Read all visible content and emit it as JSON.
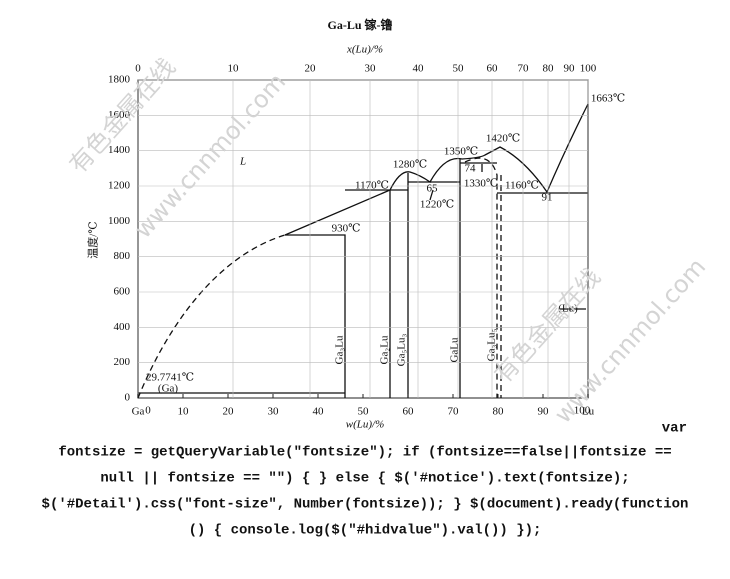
{
  "diagram": {
    "title": "Ga-Lu  镓-镥",
    "top_axis_label": "x(Lu)/%",
    "bottom_axis_label": "w(Lu)/%",
    "y_axis_label": "温度/℃",
    "top_ticks": [
      "0",
      "10",
      "20",
      "30",
      "40",
      "50",
      "60",
      "70",
      "80",
      "90",
      "100"
    ],
    "bottom_ticks": [
      "0",
      "10",
      "20",
      "30",
      "40",
      "50",
      "60",
      "70",
      "80",
      "90",
      "100"
    ],
    "y_ticks": [
      "0",
      "200",
      "400",
      "600",
      "800",
      "1000",
      "1200",
      "1400",
      "1600",
      "1800"
    ],
    "end_labels": [
      "Ga",
      "Lu"
    ],
    "annotations": [
      "L",
      "1663℃",
      "1420℃",
      "1350℃",
      "1280℃",
      "1170℃",
      "930℃",
      "65",
      "1220℃",
      "74",
      "1330℃",
      "1160℃",
      "91",
      "(Lu)",
      "29.7741℃",
      "(Ga)"
    ],
    "phases": [
      "Ga₃Lu",
      "Ga₂Lu",
      "Ga₅Lu₃",
      "GaLu",
      "Ga₃Lu₅"
    ],
    "watermarks": [
      "有色金属在线",
      "www.cnnmol.com",
      "有色金属在线",
      "www.cnnmol.com"
    ]
  },
  "code": {
    "lines": [
      "var",
      "fontsize = getQueryVariable(\"fontsize\"); if (fontsize==false||fontsize ==",
      "null || fontsize == \"\") { } else { $('#notice').text(fontsize);",
      "$('#Detail').css(\"font-size\", Number(fontsize)); } $(document).ready(function",
      "() { console.log($(\"#hidvalue\").val()) });"
    ]
  }
}
